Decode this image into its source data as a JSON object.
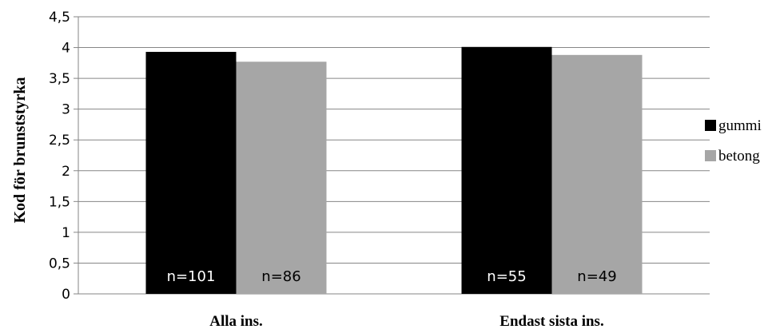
{
  "chart_data": {
    "type": "bar",
    "title": "",
    "xlabel": "",
    "ylabel": "Kod för brunststyrka",
    "ylim": [
      0,
      4.5
    ],
    "yticks": [
      "0",
      "0,5",
      "1",
      "1,5",
      "2",
      "2,5",
      "3",
      "3,5",
      "4",
      "4,5"
    ],
    "grid": true,
    "legend_position": "right",
    "categories": [
      "Alla ins.",
      "Endast sista ins."
    ],
    "series": [
      {
        "name": "gummi",
        "color": "#000000",
        "values": [
          3.93,
          4.01
        ],
        "labels": [
          "n=101",
          "n=55"
        ]
      },
      {
        "name": "betong",
        "color": "#a6a6a6",
        "values": [
          3.77,
          3.88
        ],
        "labels": [
          "n=86",
          "n=49"
        ]
      }
    ]
  }
}
